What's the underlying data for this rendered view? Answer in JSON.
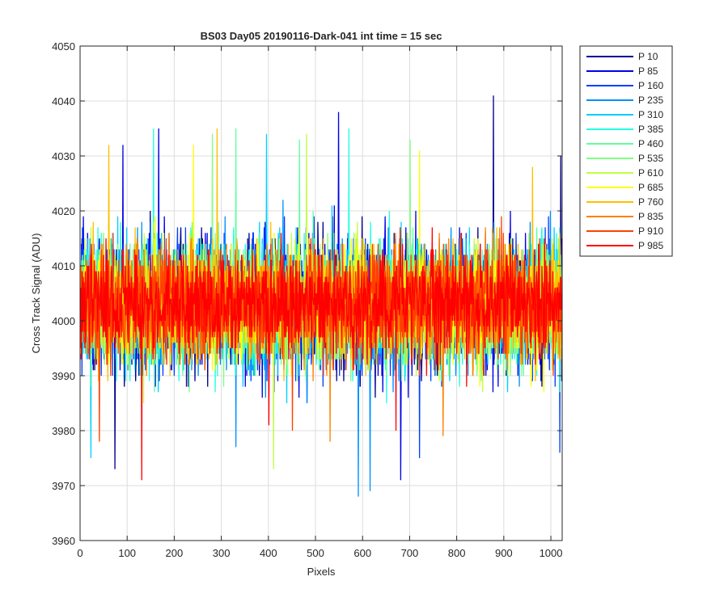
{
  "chart_data": {
    "type": "line",
    "title": "BS03 Day05 20190116-Dark-041 int time = 15 sec",
    "xlabel": "Pixels",
    "ylabel": "Cross Track Signal (ADU)",
    "xlim": [
      0,
      1024
    ],
    "ylim": [
      3960,
      4050
    ],
    "xticks": [
      0,
      100,
      200,
      300,
      400,
      500,
      600,
      700,
      800,
      900,
      1000
    ],
    "yticks": [
      3960,
      3970,
      3980,
      3990,
      4000,
      4010,
      4020,
      4030,
      4040,
      4050
    ],
    "grid": true,
    "legend_position": "outside-top-right",
    "n_points": 1024,
    "series": [
      {
        "name": "P 10",
        "color": "#00008f",
        "mean": 4003,
        "std": 8.5,
        "spikes": [
          [
            73,
            3973
          ],
          [
            877,
            4041
          ],
          [
            1020,
            4030
          ]
        ]
      },
      {
        "name": "P 85",
        "color": "#0000e6",
        "mean": 4003,
        "std": 8.3,
        "spikes": [
          [
            90,
            4032
          ],
          [
            166,
            4035
          ],
          [
            548,
            4038
          ],
          [
            680,
            3971
          ]
        ]
      },
      {
        "name": "P 160",
        "color": "#0040ff",
        "mean": 4003,
        "std": 8.0,
        "spikes": [
          [
            720,
            3975
          ],
          [
            1018,
            3976
          ]
        ]
      },
      {
        "name": "P 235",
        "color": "#0090ff",
        "mean": 4003,
        "std": 8.0,
        "spikes": [
          [
            590,
            3968
          ],
          [
            615,
            3969
          ],
          [
            330,
            3977
          ]
        ]
      },
      {
        "name": "P 310",
        "color": "#00d0ff",
        "mean": 4003,
        "std": 7.8,
        "spikes": [
          [
            22,
            3975
          ],
          [
            395,
            4034
          ]
        ]
      },
      {
        "name": "P 385",
        "color": "#20ffe0",
        "mean": 4003,
        "std": 7.8,
        "spikes": [
          [
            155,
            4035
          ],
          [
            570,
            4035
          ]
        ]
      },
      {
        "name": "P 460",
        "color": "#60ffa0",
        "mean": 4003,
        "std": 7.6,
        "spikes": [
          [
            330,
            4035
          ],
          [
            465,
            4033
          ]
        ]
      },
      {
        "name": "P 535",
        "color": "#80ff80",
        "mean": 4003,
        "std": 7.6,
        "spikes": [
          [
            280,
            4034
          ],
          [
            700,
            4033
          ]
        ]
      },
      {
        "name": "P 610",
        "color": "#c0ff40",
        "mean": 4003,
        "std": 7.5,
        "spikes": [
          [
            410,
            3973
          ],
          [
            480,
            4034
          ]
        ]
      },
      {
        "name": "P 685",
        "color": "#ffff00",
        "mean": 4003,
        "std": 7.4,
        "spikes": [
          [
            240,
            4032
          ],
          [
            720,
            4031
          ]
        ]
      },
      {
        "name": "P 760",
        "color": "#ffc000",
        "mean": 4003,
        "std": 7.3,
        "spikes": [
          [
            290,
            4035
          ],
          [
            60,
            4032
          ],
          [
            960,
            4028
          ]
        ]
      },
      {
        "name": "P 835",
        "color": "#ff8000",
        "mean": 4003,
        "std": 7.2,
        "spikes": [
          [
            530,
            3978
          ],
          [
            770,
            3979
          ]
        ]
      },
      {
        "name": "P 910",
        "color": "#ff4000",
        "mean": 4003,
        "std": 7.0,
        "spikes": [
          [
            450,
            3980
          ],
          [
            40,
            3978
          ]
        ]
      },
      {
        "name": "P 985",
        "color": "#ff0000",
        "mean": 4003,
        "std": 6.8,
        "spikes": [
          [
            130,
            3971
          ],
          [
            400,
            3981
          ],
          [
            670,
            3980
          ]
        ]
      }
    ]
  }
}
